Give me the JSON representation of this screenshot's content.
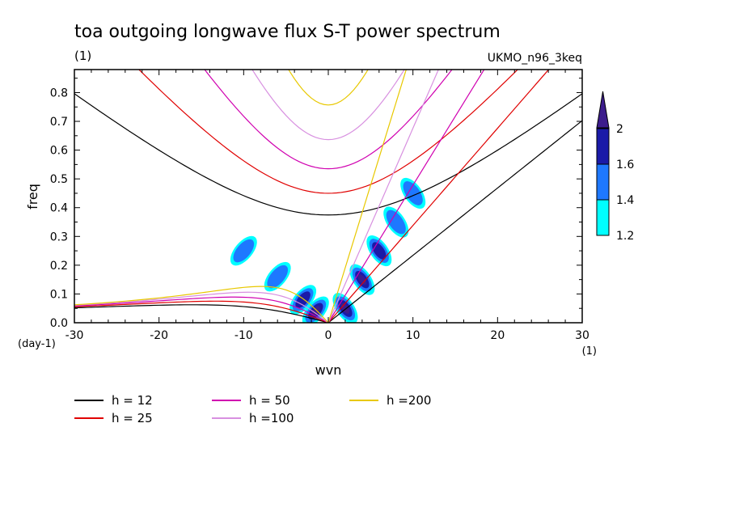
{
  "chart_data": {
    "type": "contour",
    "title": "toa outgoing longwave flux S-T power spectrum",
    "subtitle": "(1)",
    "model_label": "UKMO_n96_3keq",
    "xlabel": "wvn",
    "ylabel": "freq",
    "x_units": "(1)",
    "y_units": "(day-1)",
    "xlim": [
      -30,
      30
    ],
    "ylim": [
      0,
      0.88
    ],
    "x_ticks": [
      -30,
      -20,
      -10,
      0,
      10,
      20,
      30
    ],
    "x_tick_labels": [
      "-30",
      "-20",
      "-10",
      "0",
      "10",
      "20",
      "30"
    ],
    "y_ticks": [
      0,
      0.1,
      0.2,
      0.3,
      0.4,
      0.5,
      0.6,
      0.7,
      0.8
    ],
    "y_tick_labels": [
      "0.0",
      "0.1",
      "0.2",
      "0.3",
      "0.4",
      "0.5",
      "0.6",
      "0.7",
      "0.8"
    ],
    "colorbar": {
      "levels": [
        1.2,
        1.4,
        1.6,
        2
      ],
      "labels": [
        "1.2",
        "1.4",
        "1.6",
        "2"
      ],
      "colors": [
        "#00ffff",
        "#1e78ff",
        "#1a1aa8",
        "#3c1c8c"
      ]
    },
    "dispersion_curves": [
      {
        "label": "h = 12",
        "h": 12,
        "color": "#000000"
      },
      {
        "label": "h = 25",
        "h": 25,
        "color": "#e00000"
      },
      {
        "label": "h = 50",
        "h": 50,
        "color": "#d000b0"
      },
      {
        "label": "h =100",
        "h": 100,
        "color": "#d890e0"
      },
      {
        "label": "h =200",
        "h": 200,
        "color": "#e8c800"
      }
    ],
    "spectral_peaks": [
      {
        "wvn": -1.5,
        "freq": 0.04,
        "level": 2
      },
      {
        "wvn": -3,
        "freq": 0.08,
        "level": 1.6
      },
      {
        "wvn": -6,
        "freq": 0.16,
        "level": 1.4
      },
      {
        "wvn": -10,
        "freq": 0.25,
        "level": 1.4
      },
      {
        "wvn": 2,
        "freq": 0.05,
        "level": 2
      },
      {
        "wvn": 4,
        "freq": 0.15,
        "level": 2
      },
      {
        "wvn": 6,
        "freq": 0.25,
        "level": 1.6
      },
      {
        "wvn": 8,
        "freq": 0.35,
        "level": 1.4
      },
      {
        "wvn": 10,
        "freq": 0.45,
        "level": 1.4
      }
    ]
  }
}
